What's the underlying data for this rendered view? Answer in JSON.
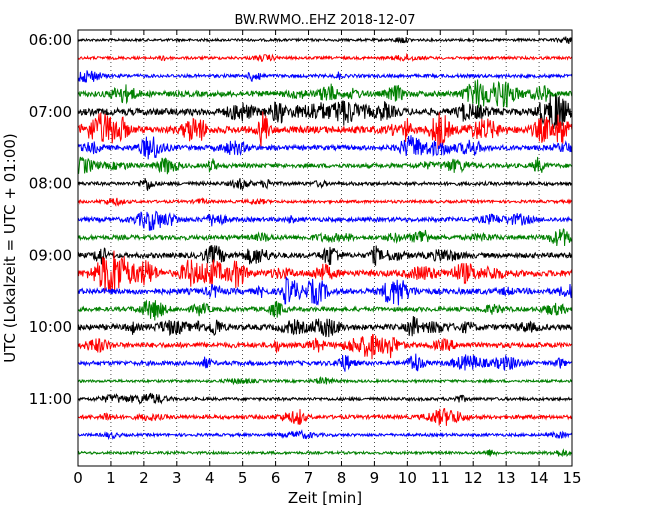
{
  "chart_data": {
    "type": "line",
    "title": "BW.RWMO..EHZ 2018-12-07",
    "xlabel": "Zeit  [min]",
    "ylabel": "UTC (Lokalzeit = UTC + 01:00)",
    "xlim": [
      0,
      15
    ],
    "x_ticks": [
      "0",
      "1",
      "2",
      "3",
      "4",
      "5",
      "6",
      "7",
      "8",
      "9",
      "10",
      "11",
      "12",
      "13",
      "14",
      "15"
    ],
    "y_ticks": [
      "06:00",
      "07:00",
      "08:00",
      "09:00",
      "10:00",
      "11:00"
    ],
    "grid": "vertical dotted",
    "trace_colors": [
      "#000000",
      "#ff0000",
      "#0000ff",
      "#008000"
    ],
    "traces": [
      {
        "label": "06:00",
        "color": "#000000",
        "activity": 0.1
      },
      {
        "label": "06:15",
        "color": "#ff0000",
        "activity": 0.15
      },
      {
        "label": "06:30",
        "color": "#0000ff",
        "activity": 0.25
      },
      {
        "label": "06:45",
        "color": "#008000",
        "activity": 0.7
      },
      {
        "label": "07:00",
        "color": "#000000",
        "activity": 0.95
      },
      {
        "label": "07:15",
        "color": "#ff0000",
        "activity": 1.0
      },
      {
        "label": "07:30",
        "color": "#0000ff",
        "activity": 0.55
      },
      {
        "label": "07:45",
        "color": "#008000",
        "activity": 0.45
      },
      {
        "label": "08:00",
        "color": "#000000",
        "activity": 0.3
      },
      {
        "label": "08:15",
        "color": "#ff0000",
        "activity": 0.15
      },
      {
        "label": "08:30",
        "color": "#0000ff",
        "activity": 0.45
      },
      {
        "label": "08:45",
        "color": "#008000",
        "activity": 0.5
      },
      {
        "label": "09:00",
        "color": "#000000",
        "activity": 0.6
      },
      {
        "label": "09:15",
        "color": "#ff0000",
        "activity": 0.85
      },
      {
        "label": "09:30",
        "color": "#0000ff",
        "activity": 0.75
      },
      {
        "label": "09:45",
        "color": "#008000",
        "activity": 0.45
      },
      {
        "label": "10:00",
        "color": "#000000",
        "activity": 0.7
      },
      {
        "label": "10:15",
        "color": "#ff0000",
        "activity": 0.6
      },
      {
        "label": "10:30",
        "color": "#0000ff",
        "activity": 0.45
      },
      {
        "label": "10:45",
        "color": "#008000",
        "activity": 0.1
      },
      {
        "label": "11:00",
        "color": "#000000",
        "activity": 0.2
      },
      {
        "label": "11:15",
        "color": "#ff0000",
        "activity": 0.35
      },
      {
        "label": "11:30",
        "color": "#0000ff",
        "activity": 0.15
      },
      {
        "label": "11:45",
        "color": "#008000",
        "activity": 0.1
      }
    ]
  }
}
